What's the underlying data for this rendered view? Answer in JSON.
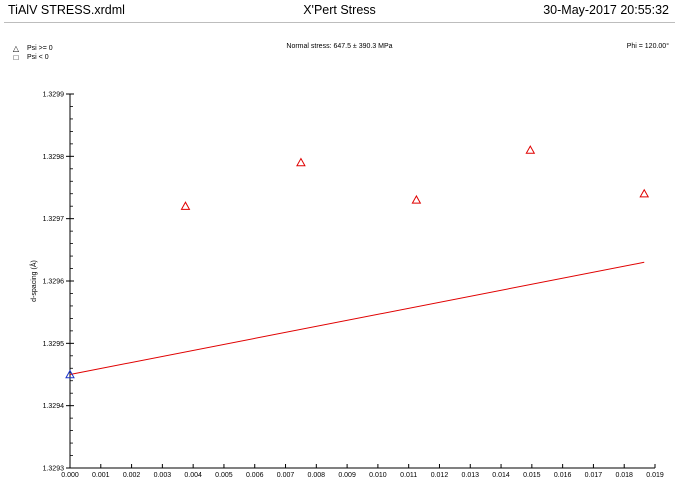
{
  "header": {
    "filename": "TiAlV STRESS.xrdml",
    "app_title": "X'Pert Stress",
    "timestamp": "30-May-2017 20:55:32"
  },
  "legend": [
    {
      "symbol": "△",
      "label": "Psi >= 0"
    },
    {
      "symbol": "□",
      "label": "Psi <  0"
    }
  ],
  "annotation": "Normal stress: 647.5 ± 390.3 MPa",
  "phi_label": "Phi = 120.00°",
  "chart_data": {
    "type": "scatter",
    "ylabel": "d-spacing (Å)",
    "xlim": [
      0.0,
      0.019
    ],
    "ylim": [
      1.3293,
      1.3299
    ],
    "x_ticks": [
      "0.000",
      "0.001",
      "0.002",
      "0.003",
      "0.004",
      "0.005",
      "0.006",
      "0.007",
      "0.008",
      "0.009",
      "0.010",
      "0.011",
      "0.012",
      "0.013",
      "0.014",
      "0.015",
      "0.016",
      "0.017",
      "0.018",
      "0.019"
    ],
    "y_ticks": [
      "1.3293",
      "1.3294",
      "1.3295",
      "1.3296",
      "1.3297",
      "1.3298",
      "1.3299"
    ],
    "series": [
      {
        "marker": "triangle",
        "color": "#e00000",
        "points": [
          {
            "x": 0.00375,
            "y": 1.32972
          },
          {
            "x": 0.0075,
            "y": 1.32979
          },
          {
            "x": 0.01125,
            "y": 1.32973
          },
          {
            "x": 0.01495,
            "y": 1.32981
          },
          {
            "x": 0.01865,
            "y": 1.32974
          }
        ]
      },
      {
        "marker": "triangle",
        "color": "#1a33cc",
        "points": [
          {
            "x": 0.0,
            "y": 1.32945
          }
        ]
      }
    ],
    "fit_line": {
      "color": "#e00000",
      "x": [
        0.0,
        0.01865
      ],
      "y": [
        1.32945,
        1.32963
      ]
    },
    "grid": false
  }
}
